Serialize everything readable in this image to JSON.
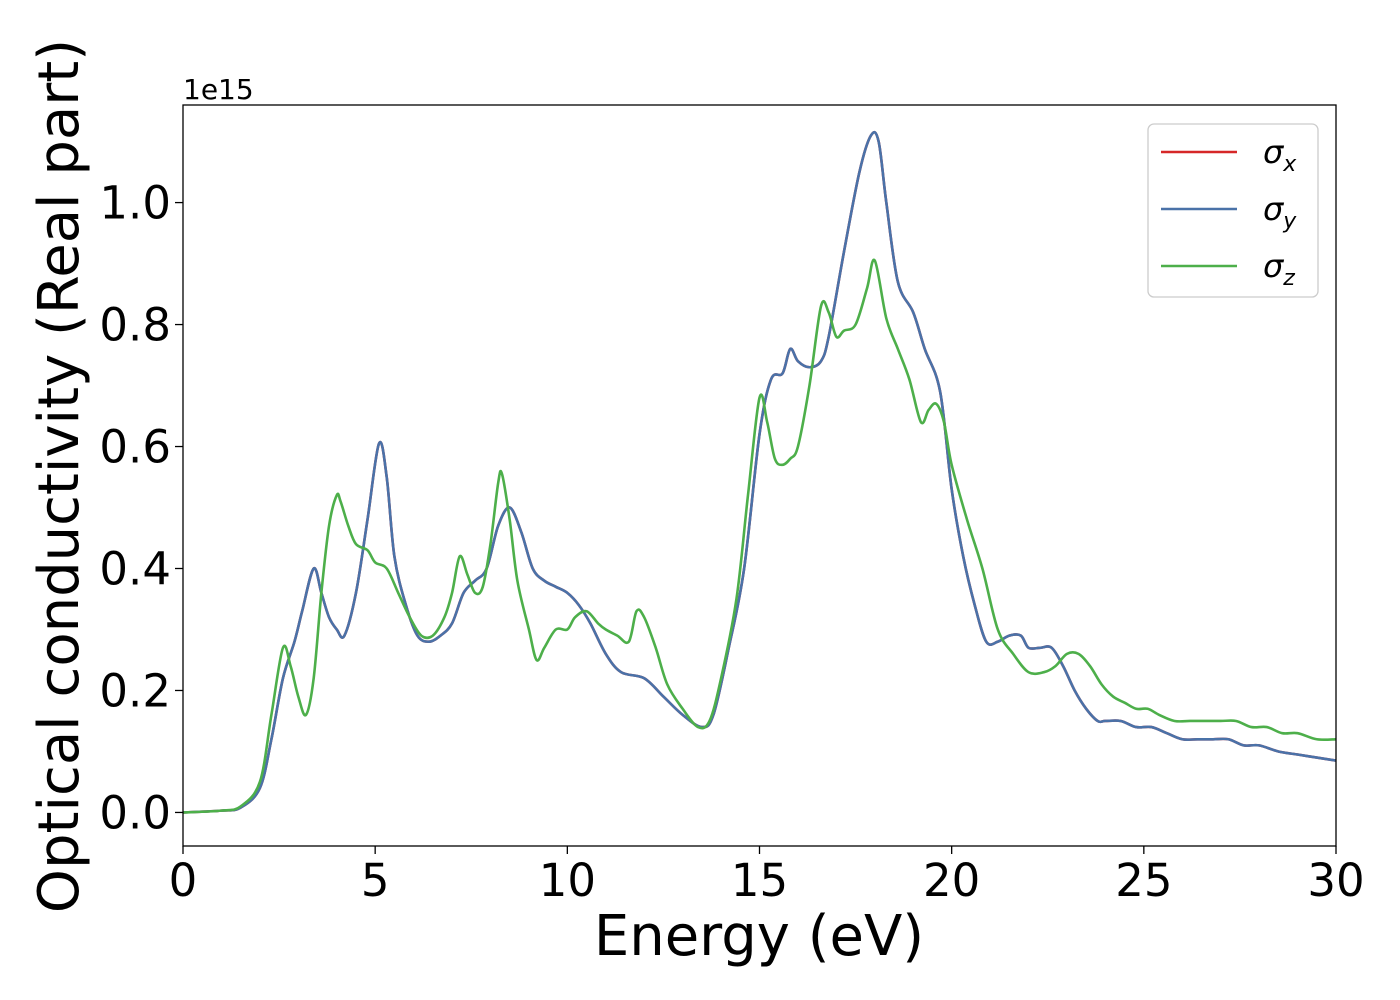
{
  "chart_data": {
    "type": "line",
    "xlabel": "Energy (eV)",
    "ylabel": "Optical conductivity (Real part)",
    "y_offset_label": "1e15",
    "xlim": [
      0,
      30
    ],
    "ylim": [
      -0.055,
      1.16
    ],
    "x_ticks": [
      0,
      5,
      10,
      15,
      20,
      25,
      30
    ],
    "x_tick_labels": [
      "0",
      "5",
      "10",
      "15",
      "20",
      "25",
      "30"
    ],
    "y_ticks": [
      0.0,
      0.2,
      0.4,
      0.6,
      0.8,
      1.0
    ],
    "y_tick_labels": [
      "0.0",
      "0.2",
      "0.4",
      "0.6",
      "0.8",
      "1.0"
    ],
    "grid": false,
    "legend_position": "top-right",
    "series": [
      {
        "name": "σx",
        "symbol": "σ",
        "subscript": "x",
        "color": "#d62728",
        "x": [
          0,
          1,
          1.5,
          2,
          2.3,
          2.6,
          2.9,
          3.1,
          3.4,
          3.6,
          3.8,
          4.0,
          4.2,
          4.5,
          4.8,
          5.1,
          5.3,
          5.5,
          5.8,
          6.1,
          6.4,
          6.7,
          7.0,
          7.3,
          7.6,
          7.9,
          8.2,
          8.5,
          8.8,
          9.1,
          9.4,
          9.7,
          10.0,
          10.3,
          10.6,
          11.0,
          11.4,
          12.0,
          12.5,
          13.0,
          13.5,
          13.8,
          14.2,
          14.6,
          15.0,
          15.3,
          15.6,
          15.8,
          16.0,
          16.3,
          16.6,
          16.8,
          17.2,
          17.6,
          17.9,
          18.1,
          18.3,
          18.6,
          19.0,
          19.3,
          19.7,
          20.0,
          20.3,
          20.6,
          20.9,
          21.2,
          21.5,
          21.8,
          22.0,
          22.3,
          22.6,
          22.9,
          23.2,
          23.5,
          23.8,
          24.0,
          24.4,
          24.8,
          25.2,
          25.6,
          26.0,
          26.4,
          26.8,
          27.2,
          27.6,
          28.0,
          28.5,
          29.0,
          29.5,
          30.0
        ],
        "y": [
          0.0,
          0.003,
          0.008,
          0.04,
          0.12,
          0.22,
          0.28,
          0.33,
          0.4,
          0.36,
          0.32,
          0.3,
          0.29,
          0.36,
          0.48,
          0.605,
          0.55,
          0.42,
          0.34,
          0.29,
          0.28,
          0.29,
          0.31,
          0.36,
          0.38,
          0.4,
          0.47,
          0.5,
          0.46,
          0.4,
          0.38,
          0.37,
          0.36,
          0.34,
          0.31,
          0.26,
          0.23,
          0.22,
          0.19,
          0.16,
          0.14,
          0.16,
          0.27,
          0.4,
          0.62,
          0.71,
          0.72,
          0.76,
          0.74,
          0.73,
          0.74,
          0.78,
          0.92,
          1.05,
          1.11,
          1.1,
          1.0,
          0.87,
          0.82,
          0.76,
          0.69,
          0.53,
          0.42,
          0.34,
          0.28,
          0.28,
          0.29,
          0.29,
          0.27,
          0.27,
          0.27,
          0.24,
          0.2,
          0.17,
          0.15,
          0.15,
          0.15,
          0.14,
          0.14,
          0.13,
          0.12,
          0.12,
          0.12,
          0.12,
          0.11,
          0.11,
          0.1,
          0.095,
          0.09,
          0.085
        ]
      },
      {
        "name": "σy",
        "symbol": "σ",
        "subscript": "y",
        "color": "#4a72a8",
        "x": [
          0,
          1,
          1.5,
          2,
          2.3,
          2.6,
          2.9,
          3.1,
          3.4,
          3.6,
          3.8,
          4.0,
          4.2,
          4.5,
          4.8,
          5.1,
          5.3,
          5.5,
          5.8,
          6.1,
          6.4,
          6.7,
          7.0,
          7.3,
          7.6,
          7.9,
          8.2,
          8.5,
          8.8,
          9.1,
          9.4,
          9.7,
          10.0,
          10.3,
          10.6,
          11.0,
          11.4,
          12.0,
          12.5,
          13.0,
          13.5,
          13.8,
          14.2,
          14.6,
          15.0,
          15.3,
          15.6,
          15.8,
          16.0,
          16.3,
          16.6,
          16.8,
          17.2,
          17.6,
          17.9,
          18.1,
          18.3,
          18.6,
          19.0,
          19.3,
          19.7,
          20.0,
          20.3,
          20.6,
          20.9,
          21.2,
          21.5,
          21.8,
          22.0,
          22.3,
          22.6,
          22.9,
          23.2,
          23.5,
          23.8,
          24.0,
          24.4,
          24.8,
          25.2,
          25.6,
          26.0,
          26.4,
          26.8,
          27.2,
          27.6,
          28.0,
          28.5,
          29.0,
          29.5,
          30.0
        ],
        "y": [
          0.0,
          0.003,
          0.008,
          0.04,
          0.12,
          0.22,
          0.28,
          0.33,
          0.4,
          0.36,
          0.32,
          0.3,
          0.29,
          0.36,
          0.48,
          0.605,
          0.55,
          0.42,
          0.34,
          0.29,
          0.28,
          0.29,
          0.31,
          0.36,
          0.38,
          0.4,
          0.47,
          0.5,
          0.46,
          0.4,
          0.38,
          0.37,
          0.36,
          0.34,
          0.31,
          0.26,
          0.23,
          0.22,
          0.19,
          0.16,
          0.14,
          0.16,
          0.27,
          0.4,
          0.62,
          0.71,
          0.72,
          0.76,
          0.74,
          0.73,
          0.74,
          0.78,
          0.92,
          1.05,
          1.11,
          1.1,
          1.0,
          0.87,
          0.82,
          0.76,
          0.69,
          0.53,
          0.42,
          0.34,
          0.28,
          0.28,
          0.29,
          0.29,
          0.27,
          0.27,
          0.27,
          0.24,
          0.2,
          0.17,
          0.15,
          0.15,
          0.15,
          0.14,
          0.14,
          0.13,
          0.12,
          0.12,
          0.12,
          0.12,
          0.11,
          0.11,
          0.1,
          0.095,
          0.09,
          0.085
        ]
      },
      {
        "name": "σz",
        "symbol": "σ",
        "subscript": "z",
        "color": "#4daf4a",
        "x": [
          0,
          1,
          1.5,
          2,
          2.3,
          2.6,
          2.8,
          3.0,
          3.2,
          3.4,
          3.6,
          3.8,
          4.0,
          4.1,
          4.3,
          4.5,
          4.8,
          5.0,
          5.3,
          5.6,
          5.9,
          6.2,
          6.5,
          6.8,
          7.0,
          7.2,
          7.4,
          7.6,
          7.8,
          8.0,
          8.2,
          8.3,
          8.5,
          8.7,
          9.0,
          9.2,
          9.4,
          9.7,
          10.0,
          10.2,
          10.5,
          10.8,
          11.0,
          11.3,
          11.6,
          11.8,
          12.0,
          12.3,
          12.6,
          13.0,
          13.4,
          13.7,
          14.0,
          14.4,
          14.7,
          15.0,
          15.2,
          15.4,
          15.6,
          15.8,
          16.0,
          16.3,
          16.6,
          16.8,
          17.0,
          17.2,
          17.5,
          17.8,
          18.0,
          18.3,
          18.6,
          18.9,
          19.2,
          19.4,
          19.6,
          19.8,
          20.0,
          20.4,
          20.8,
          21.2,
          21.6,
          22.0,
          22.4,
          22.7,
          23.0,
          23.3,
          23.6,
          23.9,
          24.2,
          24.5,
          24.8,
          25.1,
          25.4,
          25.8,
          26.2,
          26.6,
          27.0,
          27.4,
          27.8,
          28.2,
          28.6,
          29.0,
          29.5,
          30.0
        ],
        "y": [
          0.0,
          0.003,
          0.01,
          0.05,
          0.16,
          0.27,
          0.24,
          0.19,
          0.16,
          0.22,
          0.36,
          0.47,
          0.52,
          0.51,
          0.47,
          0.44,
          0.43,
          0.41,
          0.4,
          0.36,
          0.32,
          0.29,
          0.29,
          0.32,
          0.36,
          0.42,
          0.39,
          0.36,
          0.37,
          0.44,
          0.54,
          0.555,
          0.48,
          0.38,
          0.3,
          0.25,
          0.27,
          0.3,
          0.3,
          0.32,
          0.33,
          0.31,
          0.3,
          0.29,
          0.28,
          0.33,
          0.32,
          0.27,
          0.21,
          0.17,
          0.14,
          0.15,
          0.22,
          0.35,
          0.52,
          0.68,
          0.64,
          0.58,
          0.57,
          0.58,
          0.6,
          0.7,
          0.83,
          0.82,
          0.78,
          0.79,
          0.8,
          0.86,
          0.905,
          0.81,
          0.76,
          0.71,
          0.64,
          0.66,
          0.67,
          0.64,
          0.57,
          0.48,
          0.4,
          0.3,
          0.26,
          0.23,
          0.23,
          0.24,
          0.26,
          0.26,
          0.24,
          0.21,
          0.19,
          0.18,
          0.17,
          0.17,
          0.16,
          0.15,
          0.15,
          0.15,
          0.15,
          0.15,
          0.14,
          0.14,
          0.13,
          0.13,
          0.12,
          0.12
        ]
      }
    ]
  }
}
